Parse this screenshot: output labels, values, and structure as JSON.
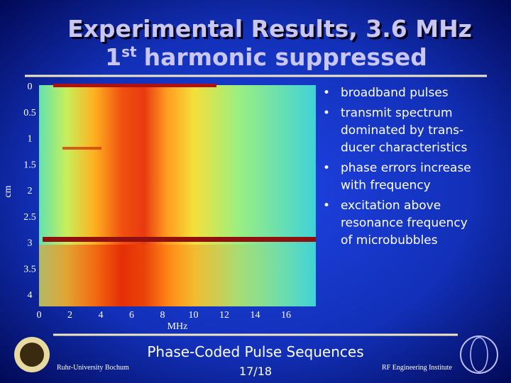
{
  "title": {
    "line1": "Experimental Results, 3.6 MHz",
    "line2": {
      "base": "1",
      "superscript": "st",
      "rest": "harmonic suppressed"
    }
  },
  "figure": {
    "ylabel": "cm",
    "xlabel": "MHz",
    "yticks": [
      0,
      0.5,
      1,
      1.5,
      2,
      2.5,
      3,
      3.5,
      4
    ],
    "xticks": [
      0,
      2,
      4,
      6,
      8,
      10,
      12,
      14,
      16
    ]
  },
  "bullets": [
    [
      "broadband pulses"
    ],
    [
      "transmit spectrum",
      "dominated by trans-",
      "ducer characteristics"
    ],
    [
      "phase errors increase",
      "with frequency"
    ],
    [
      "excitation above",
      "resonance frequency",
      "of microbubbles"
    ]
  ],
  "footer": {
    "title": "Phase-Coded Pulse Sequences",
    "page": "17/18",
    "left": "Ruhr-University Bochum",
    "right": "RF Engineering Institute"
  }
}
